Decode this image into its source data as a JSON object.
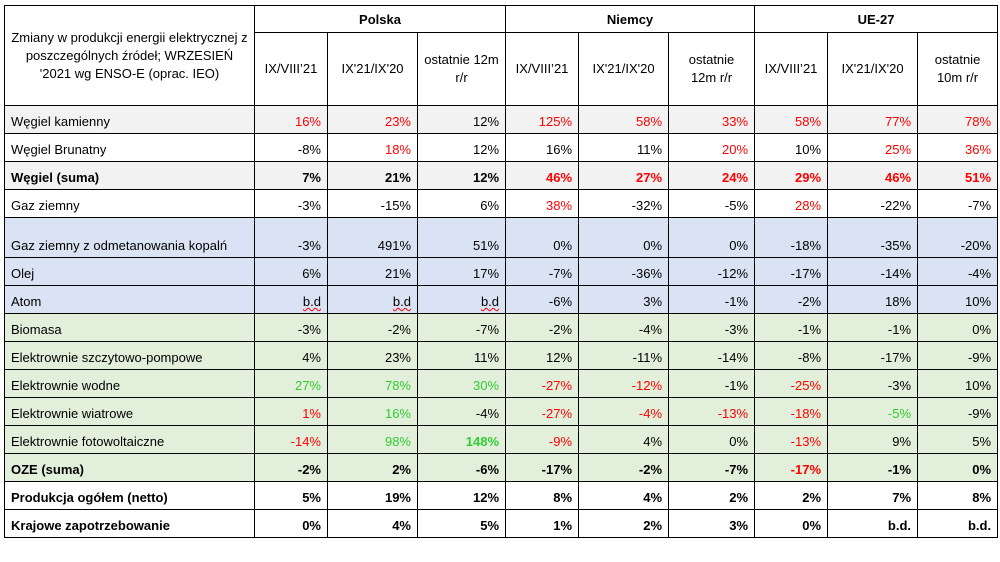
{
  "header": {
    "description": "Zmiany w produkcji energii elektrycznej  z poszczególnych źródeł; WRZESIEŃ '2021 wg ENSO-E (oprac. IEO)",
    "groups": [
      "Polska",
      "Niemcy",
      "UE-27"
    ],
    "subcolumns": [
      "IX/VIII’21",
      "IX'21/IX'20",
      "ostatnie 12m r/r",
      "IX/VIII’21",
      "IX'21/IX'20",
      "ostatnie 12m r/r",
      "IX/VIII’21",
      "IX'21/IX'20",
      "ostatnie 10m r/r"
    ]
  },
  "colors": {
    "red": "#ff0000",
    "green": "#33cc33",
    "grey_bg": "#f2f2f2",
    "blue_bg": "#dae3f3",
    "green_bg": "#e2efda"
  },
  "rows": [
    {
      "label": "Węgiel kamienny",
      "values": [
        "16%",
        "23%",
        "12%",
        "125%",
        "58%",
        "33%",
        "58%",
        "77%",
        "78%"
      ]
    },
    {
      "label": "Węgiel Brunatny",
      "values": [
        "-8%",
        "18%",
        "12%",
        "16%",
        "11%",
        "20%",
        "10%",
        "25%",
        "36%"
      ]
    },
    {
      "label": "Węgiel (suma)",
      "values": [
        "7%",
        "21%",
        "12%",
        "46%",
        "27%",
        "24%",
        "29%",
        "46%",
        "51%"
      ]
    },
    {
      "label": "Gaz  ziemny",
      "values": [
        "-3%",
        "-15%",
        "6%",
        "38%",
        "-32%",
        "-5%",
        "28%",
        "-22%",
        "-7%"
      ]
    },
    {
      "label": "Gaz ziemny z odmetanowania kopalń",
      "values": [
        "-3%",
        "491%",
        "51%",
        "0%",
        "0%",
        "0%",
        "-18%",
        "-35%",
        "-20%"
      ]
    },
    {
      "label": "Olej",
      "values": [
        "6%",
        "21%",
        "17%",
        "-7%",
        "-36%",
        "-12%",
        "-17%",
        "-14%",
        "-4%"
      ]
    },
    {
      "label": "Atom",
      "values": [
        "b.d",
        "b.d",
        "b.d",
        "-6%",
        "3%",
        "-1%",
        "-2%",
        "18%",
        "10%"
      ]
    },
    {
      "label": "Biomasa",
      "values": [
        "-3%",
        "-2%",
        "-7%",
        "-2%",
        "-4%",
        "-3%",
        "-1%",
        "-1%",
        "0%"
      ]
    },
    {
      "label": "Elektrownie szczytowo-pompowe",
      "values": [
        "4%",
        "23%",
        "11%",
        "12%",
        "-11%",
        "-14%",
        "-8%",
        "-17%",
        "-9%"
      ]
    },
    {
      "label": "Elektrownie wodne",
      "values": [
        "27%",
        "78%",
        "30%",
        "-27%",
        "-12%",
        "-1%",
        "-25%",
        "-3%",
        "10%"
      ]
    },
    {
      "label": "Elektrownie wiatrowe",
      "values": [
        "1%",
        "16%",
        "-4%",
        "-27%",
        "-4%",
        "-13%",
        "-18%",
        "-5%",
        "-9%"
      ]
    },
    {
      "label": "Elektrownie fotowoltaiczne",
      "values": [
        "-14%",
        "98%",
        "148%",
        "-9%",
        "4%",
        "0%",
        "-13%",
        "9%",
        "5%"
      ]
    },
    {
      "label": "OZE (suma)",
      "values": [
        "-2%",
        "2%",
        "-6%",
        "-17%",
        "-2%",
        "-7%",
        "-17%",
        "-1%",
        "0%"
      ]
    },
    {
      "label": "Produkcja ogółem (netto)",
      "values": [
        "5%",
        "19%",
        "12%",
        "8%",
        "4%",
        "2%",
        "2%",
        "7%",
        "8%"
      ]
    },
    {
      "label": "Krajowe zapotrzebowanie",
      "values": [
        "0%",
        "4%",
        "5%",
        "1%",
        "2%",
        "3%",
        "0%",
        "b.d.",
        "b.d."
      ]
    }
  ]
}
